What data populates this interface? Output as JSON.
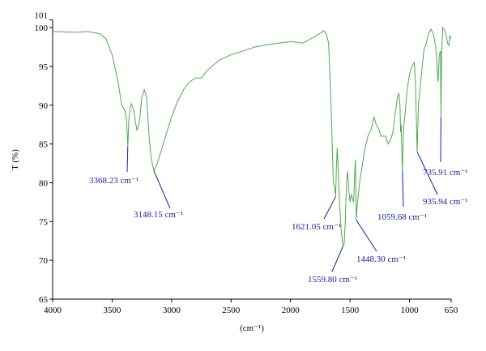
{
  "chart_data": {
    "type": "line",
    "color": "#4ea84e",
    "ylabel": "T (%)",
    "xlabel": "(cm⁻¹)",
    "xlim": [
      4000,
      650
    ],
    "ylim": [
      65,
      101
    ],
    "xticks": [
      4000,
      3500,
      3000,
      2500,
      2000,
      1500,
      1000,
      650
    ],
    "yticks": [
      65,
      70,
      75,
      80,
      85,
      90,
      95,
      100,
      101
    ],
    "x": [
      4000,
      3800,
      3700,
      3600,
      3550,
      3500,
      3450,
      3420,
      3400,
      3390,
      3380,
      3372,
      3368.23,
      3360,
      3350,
      3340,
      3320,
      3300,
      3290,
      3270,
      3250,
      3230,
      3210,
      3190,
      3170,
      3148.15,
      3120,
      3080,
      3050,
      3000,
      2950,
      2900,
      2850,
      2800,
      2750,
      2700,
      2600,
      2500,
      2400,
      2300,
      2200,
      2100,
      2000,
      1900,
      1800,
      1750,
      1720,
      1700,
      1680,
      1660,
      1640,
      1630,
      1621.05,
      1615,
      1608,
      1600,
      1590,
      1575,
      1559.8,
      1550,
      1540,
      1530,
      1520,
      1510,
      1500,
      1490,
      1480,
      1470,
      1460,
      1455,
      1448.3,
      1440,
      1420,
      1400,
      1380,
      1350,
      1320,
      1300,
      1280,
      1260,
      1240,
      1200,
      1180,
      1160,
      1140,
      1120,
      1100,
      1090,
      1080,
      1075,
      1070,
      1059.68,
      1050,
      1040,
      1020,
      1000,
      980,
      960,
      950,
      935.94,
      925,
      900,
      880,
      860,
      840,
      820,
      800,
      780,
      770,
      760,
      750,
      740,
      735.91,
      730,
      720,
      700,
      680,
      670,
      660,
      650
    ],
    "values": [
      99.5,
      99.4,
      99.5,
      99.2,
      98.5,
      96.5,
      93,
      90,
      89.5,
      89.2,
      88,
      86,
      84.7,
      88,
      89.5,
      90.2,
      89.5,
      87.5,
      86.7,
      88,
      91,
      92,
      91,
      86,
      83,
      81.5,
      82.5,
      84.5,
      86,
      88.5,
      90.5,
      92,
      93,
      93.5,
      93.5,
      94.5,
      95.8,
      96.5,
      97,
      97.5,
      97.8,
      98,
      98.2,
      98,
      98.8,
      99.3,
      99.6,
      99.2,
      98,
      90,
      80,
      79.5,
      78.2,
      82,
      84.5,
      82,
      78,
      74,
      71.8,
      72,
      75,
      80,
      81.5,
      79,
      77.5,
      78.5,
      78,
      77.5,
      81.5,
      83,
      75.2,
      77,
      80,
      82,
      84,
      86,
      87,
      88.5,
      87.5,
      87,
      86,
      86,
      85,
      85.5,
      86.5,
      89,
      91.2,
      91.5,
      90,
      86.5,
      87.5,
      81.5,
      87,
      88.5,
      92,
      94,
      95,
      95.5,
      93,
      84,
      90,
      94,
      97,
      98,
      99.2,
      99.8,
      99.2,
      97.5,
      95.5,
      93,
      96.5,
      97,
      88.5,
      97,
      100,
      99.5,
      98,
      97.7,
      99,
      98.5
    ],
    "annotations": [
      {
        "label": "3368.23 cm⁻¹",
        "x": 3368.23,
        "y": 84.7
      },
      {
        "label": "3148.15 cm⁻¹",
        "x": 3148.15,
        "y": 81.5
      },
      {
        "label": "1621.05 cm⁻¹",
        "x": 1621.05,
        "y": 78.2
      },
      {
        "label": "1559.80 cm⁻¹",
        "x": 1559.8,
        "y": 71.8
      },
      {
        "label": "1448.30 cm⁻¹",
        "x": 1448.3,
        "y": 75.2
      },
      {
        "label": "1059.68 cm⁻¹",
        "x": 1059.68,
        "y": 81.5
      },
      {
        "label": "935.94 cm⁻¹",
        "x": 935.94,
        "y": 84
      },
      {
        "label": "735.91 cm⁻¹",
        "x": 735.91,
        "y": 88.5
      }
    ]
  }
}
